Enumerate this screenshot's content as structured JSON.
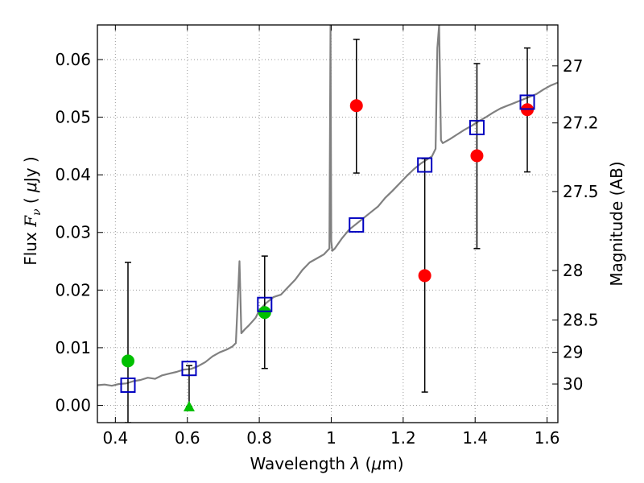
{
  "chart_data": {
    "type": "scatter",
    "xlabel": "Wavelength  λ (μm)",
    "ylabel": "Flux  Fν  ( μJy )",
    "ylabel2": "Magnitude (AB)",
    "xlim": [
      0.35,
      1.63
    ],
    "ylim": [
      -0.003,
      0.066
    ],
    "grid": true,
    "x_ticks": [
      0.4,
      0.6,
      0.8,
      1.0,
      1.2,
      1.4,
      1.6
    ],
    "x_tick_labels": [
      "0.4",
      "0.6",
      "0.8",
      "1",
      "1.2",
      "1.4",
      "1.6"
    ],
    "y_ticks": [
      0.0,
      0.01,
      0.02,
      0.03,
      0.04,
      0.05,
      0.06
    ],
    "y_tick_labels": [
      "0.00",
      "0.01",
      "0.02",
      "0.03",
      "0.04",
      "0.05",
      "0.06"
    ],
    "mag_ticks": [
      {
        "label": "27",
        "flux": 0.0589
      },
      {
        "label": "27.2",
        "flux": 0.049
      },
      {
        "label": "27.5",
        "flux": 0.0371
      },
      {
        "label": "28",
        "flux": 0.0234
      },
      {
        "label": "28.5",
        "flux": 0.0148
      },
      {
        "label": "29",
        "flux": 0.0092
      },
      {
        "label": "30",
        "flux": 0.0037
      }
    ],
    "colors": {
      "spectrum": "#808080",
      "red": "#ff0000",
      "green": "#00c000",
      "model": "#0000c0",
      "errorbar": "#000000",
      "grid": "#999999"
    },
    "series": [
      {
        "marker": "line",
        "color_key": "spectrum",
        "x": [
          0.35,
          0.37,
          0.39,
          0.41,
          0.43,
          0.45,
          0.47,
          0.49,
          0.51,
          0.53,
          0.55,
          0.57,
          0.59,
          0.61,
          0.63,
          0.65,
          0.67,
          0.69,
          0.71,
          0.725,
          0.735,
          0.74,
          0.745,
          0.75,
          0.76,
          0.77,
          0.78,
          0.79,
          0.8,
          0.82,
          0.84,
          0.86,
          0.88,
          0.9,
          0.92,
          0.94,
          0.96,
          0.98,
          0.995,
          0.998,
          1.0,
          1.003,
          1.01,
          1.03,
          1.05,
          1.07,
          1.09,
          1.11,
          1.13,
          1.15,
          1.17,
          1.19,
          1.21,
          1.23,
          1.25,
          1.27,
          1.28,
          1.29,
          1.295,
          1.3,
          1.305,
          1.31,
          1.33,
          1.35,
          1.37,
          1.39,
          1.41,
          1.43,
          1.45,
          1.47,
          1.49,
          1.51,
          1.53,
          1.55,
          1.57,
          1.59,
          1.61,
          1.63
        ],
        "y": [
          0.0035,
          0.0036,
          0.0034,
          0.0037,
          0.0038,
          0.0042,
          0.0044,
          0.0048,
          0.0046,
          0.0052,
          0.0055,
          0.0058,
          0.0062,
          0.0063,
          0.0068,
          0.0075,
          0.0085,
          0.0092,
          0.0097,
          0.0102,
          0.0108,
          0.018,
          0.025,
          0.0125,
          0.0132,
          0.0138,
          0.0145,
          0.0152,
          0.0165,
          0.0178,
          0.0188,
          0.0192,
          0.0205,
          0.0218,
          0.0235,
          0.0248,
          0.0255,
          0.0262,
          0.0272,
          0.066,
          0.0285,
          0.0268,
          0.0272,
          0.029,
          0.0305,
          0.0315,
          0.0325,
          0.0335,
          0.0345,
          0.036,
          0.0372,
          0.0385,
          0.0398,
          0.041,
          0.042,
          0.0428,
          0.0432,
          0.0445,
          0.062,
          0.066,
          0.046,
          0.0455,
          0.0462,
          0.047,
          0.0478,
          0.0485,
          0.0493,
          0.05,
          0.0508,
          0.0515,
          0.052,
          0.0525,
          0.053,
          0.0535,
          0.054,
          0.0548,
          0.0555,
          0.056
        ]
      },
      {
        "marker": "circle",
        "color_key": "red",
        "x": [
          1.07,
          1.26,
          1.405,
          1.545
        ],
        "y": [
          0.052,
          0.0225,
          0.0433,
          0.0513
        ],
        "err_low": [
          0.0403,
          0.0023,
          0.0272,
          0.0405
        ],
        "err_high": [
          0.0635,
          0.0428,
          0.0593,
          0.062
        ]
      },
      {
        "marker": "circle",
        "color_key": "green",
        "x": [
          0.435,
          0.815
        ],
        "y": [
          0.0077,
          0.0161
        ],
        "err_low": [
          -0.003,
          0.0064
        ],
        "err_high": [
          0.0248,
          0.0259
        ]
      },
      {
        "marker": "triangle",
        "color_key": "green",
        "x": [
          0.605
        ],
        "y": [
          -0.0002
        ],
        "err_low": [
          -0.0002
        ],
        "err_high": [
          0.0069
        ]
      },
      {
        "marker": "square",
        "color_key": "model",
        "x": [
          0.435,
          0.605,
          0.815,
          1.07,
          1.26,
          1.405,
          1.545
        ],
        "y": [
          0.0035,
          0.0064,
          0.0175,
          0.0313,
          0.0417,
          0.0482,
          0.0526
        ]
      }
    ]
  }
}
